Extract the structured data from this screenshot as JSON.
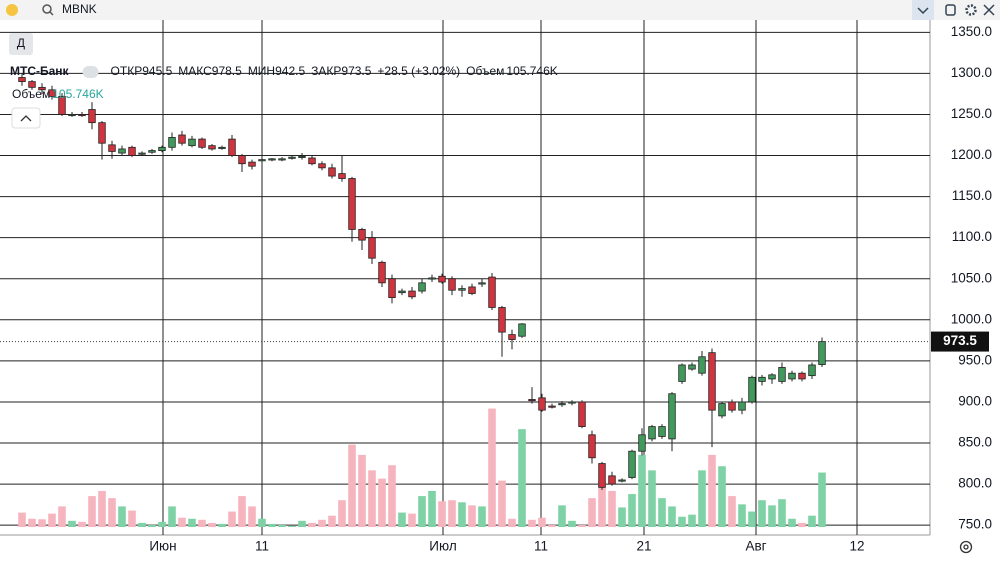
{
  "search": "MBNK",
  "chart_data": {
    "type": "candlestick",
    "interval": "Д",
    "title": "МТС-Банк",
    "ohlc_legend": [
      {
        "label": "ОТКР",
        "value": 945.5
      },
      {
        "label": "МАКС",
        "value": 978.5
      },
      {
        "label": "МИН",
        "value": 942.5
      },
      {
        "label": "ЗАКР",
        "value": 973.5
      }
    ],
    "change": "+28.5 (+3.02%)",
    "volume_legend": {
      "label": "Объем",
      "value": 105.746,
      "value_label": "105.746K"
    },
    "x": [
      0,
      1,
      2,
      3,
      4,
      5,
      6,
      7,
      8,
      9,
      10,
      11,
      12,
      13,
      14,
      15,
      16,
      17,
      18,
      19,
      20,
      21,
      22,
      23,
      24,
      25,
      26,
      27,
      28,
      29,
      30,
      31,
      32,
      33,
      34,
      35,
      36,
      37,
      38,
      39,
      40,
      41,
      42,
      43,
      44,
      45,
      46,
      47,
      48,
      49,
      50,
      51,
      52,
      53,
      54,
      55,
      56,
      57,
      58,
      59,
      60,
      61,
      62,
      63,
      64,
      65,
      66,
      67,
      68,
      69,
      70,
      71,
      72,
      73,
      74,
      75,
      76,
      77,
      78,
      79,
      80
    ],
    "open": [
      1295,
      1290,
      1283,
      1280,
      1272,
      1250,
      1250,
      1256,
      1240,
      1213,
      1203,
      1210,
      1202,
      1204,
      1206,
      1210,
      1225,
      1212,
      1220,
      1212,
      1209,
      1220,
      1200,
      1192,
      1194,
      1195,
      1195,
      1197,
      1198,
      1197,
      1190,
      1185,
      1178,
      1172,
      1110,
      1100,
      1070,
      1050,
      1033,
      1035,
      1035,
      1050,
      1053,
      1050,
      1036,
      1040,
      1044,
      1052,
      1015,
      982,
      980,
      903,
      905,
      895,
      897,
      899,
      900,
      860,
      825,
      810,
      804,
      808,
      840,
      855,
      858,
      855,
      925,
      940,
      935,
      960,
      883,
      900,
      890,
      900,
      925,
      928,
      925,
      928,
      935,
      932,
      945.5
    ],
    "high": [
      1300,
      1292,
      1288,
      1285,
      1276,
      1253,
      1253,
      1265,
      1242,
      1218,
      1212,
      1212,
      1205,
      1208,
      1212,
      1228,
      1230,
      1224,
      1222,
      1214,
      1212,
      1225,
      1202,
      1195,
      1197,
      1197,
      1198,
      1200,
      1203,
      1200,
      1193,
      1190,
      1200,
      1174,
      1112,
      1108,
      1072,
      1055,
      1038,
      1040,
      1050,
      1055,
      1056,
      1053,
      1042,
      1044,
      1050,
      1057,
      1017,
      988,
      996,
      918,
      910,
      898,
      901,
      902,
      902,
      865,
      827,
      815,
      807,
      842,
      868,
      872,
      873,
      912,
      947,
      948,
      962,
      965,
      900,
      903,
      905,
      932,
      933,
      935,
      948,
      938,
      937,
      948,
      978.5
    ],
    "low": [
      1285,
      1280,
      1275,
      1268,
      1248,
      1247,
      1247,
      1232,
      1195,
      1196,
      1200,
      1198,
      1200,
      1202,
      1204,
      1206,
      1212,
      1210,
      1208,
      1206,
      1207,
      1198,
      1180,
      1183,
      1192,
      1193,
      1193,
      1195,
      1195,
      1188,
      1182,
      1172,
      1168,
      1095,
      1085,
      1068,
      1040,
      1020,
      1030,
      1025,
      1032,
      1046,
      1044,
      1030,
      1028,
      1030,
      1040,
      1012,
      955,
      964,
      978,
      898,
      888,
      892,
      894,
      896,
      868,
      825,
      793,
      798,
      802,
      806,
      835,
      852,
      855,
      840,
      922,
      938,
      932,
      845,
      880,
      887,
      885,
      898,
      920,
      922,
      922,
      925,
      925,
      928,
      942.5
    ],
    "close": [
      1290,
      1283,
      1280,
      1272,
      1250,
      1250,
      1249,
      1240,
      1215,
      1205,
      1208,
      1200,
      1203,
      1206,
      1210,
      1222,
      1215,
      1220,
      1210,
      1208,
      1210,
      1200,
      1190,
      1187,
      1195,
      1196,
      1196,
      1198,
      1199,
      1190,
      1185,
      1175,
      1172,
      1110,
      1097,
      1075,
      1045,
      1027,
      1035,
      1028,
      1045,
      1051,
      1046,
      1036,
      1038,
      1032,
      1045,
      1015,
      985,
      976,
      995,
      902,
      890,
      894,
      898,
      900,
      870,
      832,
      796,
      800,
      805,
      840,
      860,
      870,
      870,
      910,
      945,
      945,
      955,
      890,
      898,
      890,
      900,
      930,
      930,
      933,
      942,
      935,
      928,
      945,
      973.5
    ],
    "volume": [
      28,
      16,
      15,
      26,
      40,
      12,
      10,
      60,
      70,
      56,
      40,
      32,
      8,
      4,
      10,
      40,
      18,
      16,
      14,
      8,
      6,
      30,
      60,
      40,
      16,
      6,
      4,
      2,
      12,
      8,
      14,
      22,
      52,
      160,
      140,
      110,
      94,
      120,
      28,
      26,
      60,
      70,
      50,
      52,
      48,
      42,
      40,
      230,
      90,
      16,
      190,
      14,
      18,
      4,
      42,
      12,
      4,
      56,
      90,
      70,
      38,
      64,
      140,
      110,
      56,
      40,
      20,
      24,
      110,
      140,
      118,
      60,
      44,
      30,
      52,
      42,
      54,
      16,
      8,
      22,
      105.746
    ],
    "up_color": "#3f9a5c",
    "down_color": "#d0343f",
    "up_volume_color": "#7fd2a5",
    "down_volume_color": "#f6b5be",
    "xlim": [
      -2.2,
      90.8
    ],
    "xticks": [
      {
        "value": 14.1,
        "label": "Июн"
      },
      {
        "value": 24,
        "label": "11"
      },
      {
        "value": 42.1,
        "label": "Июл"
      },
      {
        "value": 51.9,
        "label": "11"
      },
      {
        "value": 62.2,
        "label": "21"
      },
      {
        "value": 73.4,
        "label": "Авг"
      },
      {
        "value": 83.5,
        "label": "12"
      }
    ],
    "ylim": [
      738,
      1365
    ],
    "yticks": [
      {
        "value": 750,
        "label": "750.0"
      },
      {
        "value": 800,
        "label": "800.0"
      },
      {
        "value": 850,
        "label": "850.0"
      },
      {
        "value": 900,
        "label": "900.0"
      },
      {
        "value": 950,
        "label": "950.0"
      },
      {
        "value": 1000,
        "label": "1000.0"
      },
      {
        "value": 1050,
        "label": "1050.0"
      },
      {
        "value": 1100,
        "label": "1100.0"
      },
      {
        "value": 1150,
        "label": "1150.0"
      },
      {
        "value": 1200,
        "label": "1200.0"
      },
      {
        "value": 1250,
        "label": "1250.0"
      },
      {
        "value": 1300,
        "label": "1300.0"
      },
      {
        "value": 1350,
        "label": "1350.0"
      }
    ],
    "grid": true
  }
}
